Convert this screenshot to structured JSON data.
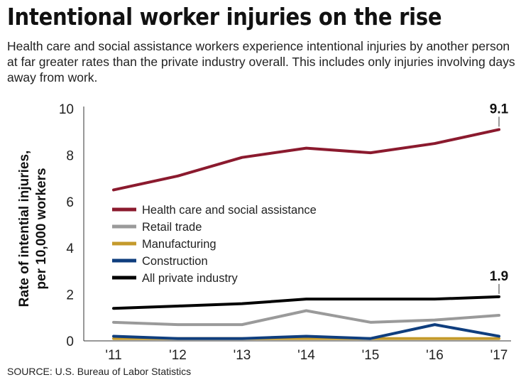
{
  "title": "Intentional worker injuries on the rise",
  "subtitle": "Health care and social assistance workers experience intentional injuries by another person at far greater rates than the private industry overall. This includes only injuries involving days away from work.",
  "source": "SOURCE: U.S. Bureau of Labor Statistics",
  "chart_data": {
    "type": "line",
    "ylabel": "Rate of intential injuries, per 10,000 workers",
    "ylabel_lines": [
      "Rate of intential injuries,",
      "per 10,000 workers"
    ],
    "xlabel": "",
    "categories": [
      "'11",
      "'12",
      "'13",
      "'14",
      "'15",
      "'16",
      "'17"
    ],
    "ylim": [
      0,
      10
    ],
    "yticks": [
      0,
      2,
      4,
      6,
      8,
      10
    ],
    "grid": false,
    "legend_placement": "center-left",
    "series": [
      {
        "name": "Health care and social assistance",
        "color": "#8b1a2e",
        "values": [
          6.5,
          7.1,
          7.9,
          8.3,
          8.1,
          8.5,
          9.1
        ]
      },
      {
        "name": "Retail trade",
        "color": "#9a9a9a",
        "values": [
          0.8,
          0.7,
          0.7,
          1.3,
          0.8,
          0.9,
          1.1
        ]
      },
      {
        "name": "Manufacturing",
        "color": "#c49a2c",
        "values": [
          0.1,
          0.1,
          0.1,
          0.1,
          0.1,
          0.1,
          0.1
        ]
      },
      {
        "name": "Construction",
        "color": "#0f3e7e",
        "values": [
          0.2,
          0.1,
          0.1,
          0.2,
          0.1,
          0.7,
          0.2
        ]
      },
      {
        "name": "All private industry",
        "color": "#000000",
        "values": [
          1.4,
          1.5,
          1.6,
          1.8,
          1.8,
          1.8,
          1.9
        ]
      }
    ],
    "annotations": [
      {
        "series": 0,
        "x": "'17",
        "text": "9.1"
      },
      {
        "series": 4,
        "x": "'17",
        "text": "1.9"
      }
    ]
  }
}
